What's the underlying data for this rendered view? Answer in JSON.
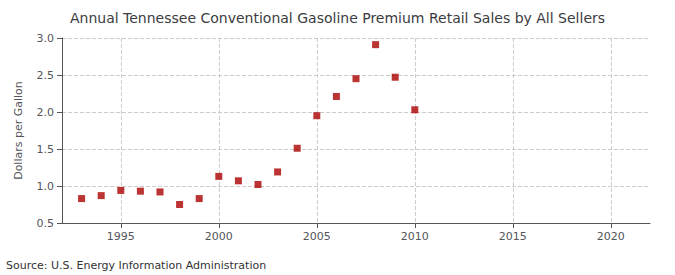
{
  "chart_data": {
    "type": "scatter",
    "title": "Annual Tennessee Conventional Gasoline Premium Retail Sales by All Sellers",
    "ylabel": "Dollars per Gallon",
    "annotations": [
      "Source: U.S. Energy Information Administration"
    ],
    "x": [
      1993,
      1994,
      1995,
      1996,
      1997,
      1998,
      1999,
      2000,
      2001,
      2002,
      2003,
      2004,
      2005,
      2006,
      2007,
      2008,
      2009,
      2010
    ],
    "values": [
      0.83,
      0.87,
      0.94,
      0.93,
      0.92,
      0.75,
      0.83,
      1.13,
      1.07,
      1.02,
      1.19,
      1.51,
      1.95,
      2.21,
      2.45,
      2.91,
      2.47,
      2.03
    ],
    "color": "#aa0000",
    "marker": "square",
    "xlim": [
      1992,
      2022
    ],
    "xticks": [
      1995,
      2000,
      2005,
      2010,
      2015,
      2020
    ],
    "ylim": [
      0.5,
      3.0
    ],
    "yticks": [
      0.5,
      {
        "value": 1.0,
        "label": "1.0"
      },
      1.5,
      {
        "value": 2.0,
        "label": "2.0"
      },
      2.5,
      {
        "value": 3.0,
        "label": "3.0"
      }
    ],
    "grid": true
  }
}
